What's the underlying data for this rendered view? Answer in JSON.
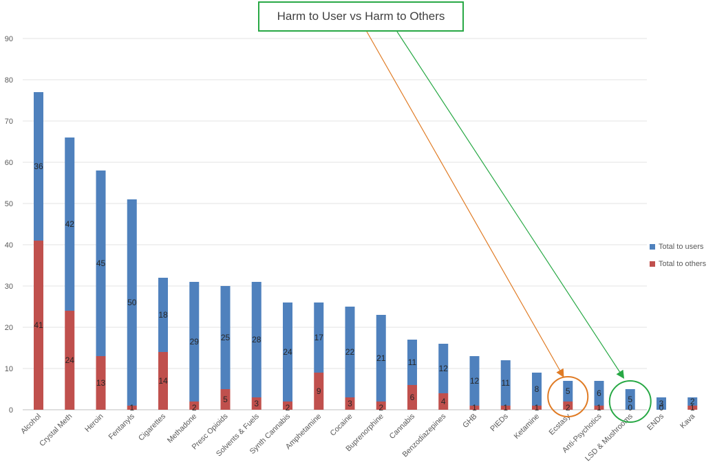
{
  "chart_data": {
    "type": "bar",
    "stacked": true,
    "title": "Harm to User vs Harm to Others",
    "categories": [
      "Alcohol",
      "Crystal Meth",
      "Heroin",
      "Fentanyls",
      "Cigarettes",
      "Methadone",
      "Presc Opioids",
      "Solvents & Fuels",
      "Synth Cannabis",
      "Amphetamine",
      "Cocaine",
      "Buprenorphine",
      "Cannabis",
      "Benzodiazepines",
      "GHB",
      "PIEDs",
      "Ketamine",
      "Ecstasy",
      "Anti-Psychotics",
      "LSD & Mushrooms",
      "ENDs",
      "Kava"
    ],
    "series": [
      {
        "name": "Total to others",
        "color": "#c0504d",
        "values": [
          41,
          24,
          13,
          1,
          14,
          2,
          5,
          3,
          2,
          9,
          3,
          2,
          6,
          4,
          1,
          1,
          1,
          2,
          1,
          0,
          0,
          1
        ]
      },
      {
        "name": "Total to users",
        "color": "#4f81bd",
        "values": [
          36,
          42,
          45,
          50,
          18,
          29,
          25,
          28,
          24,
          17,
          22,
          21,
          11,
          12,
          12,
          11,
          8,
          5,
          6,
          5,
          3,
          2
        ]
      }
    ],
    "ylim": [
      0,
      90
    ],
    "yticks": [
      0,
      10,
      20,
      30,
      40,
      50,
      60,
      70,
      80,
      90
    ],
    "grid": true,
    "legend": "right",
    "annotations": [
      {
        "target": "Ecstasy",
        "color": "#e07b24",
        "shape": "circle-with-arrow"
      },
      {
        "target": "LSD & Mushrooms",
        "color": "#27a844",
        "shape": "circle-with-arrow"
      }
    ]
  }
}
